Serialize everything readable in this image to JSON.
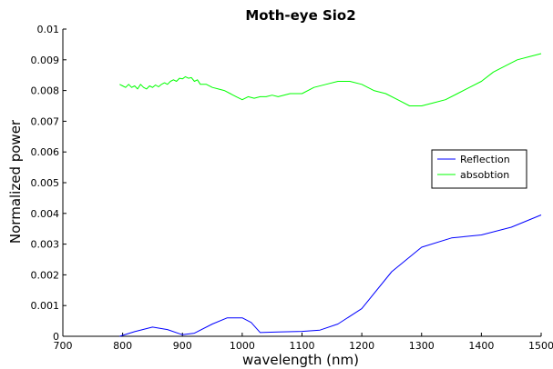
{
  "chart_data": {
    "type": "line",
    "title": "Moth-eye Sio2",
    "xlabel": "wavelength (nm)",
    "ylabel": "Normalized power",
    "xlim": [
      700,
      1500
    ],
    "ylim": [
      0,
      0.01
    ],
    "x_ticks": [
      "700",
      "800",
      "900",
      "1000",
      "1100",
      "1200",
      "1300",
      "1400",
      "1500"
    ],
    "y_ticks": [
      "0",
      "0.001",
      "0.002",
      "0.003",
      "0.004",
      "0.005",
      "0.006",
      "0.007",
      "0.008",
      "0.009",
      "0.01"
    ],
    "grid": false,
    "legend_position": "right",
    "series": [
      {
        "name": "Reflection",
        "color": "#0000ff",
        "x": [
          795,
          820,
          850,
          875,
          900,
          920,
          950,
          975,
          1000,
          1015,
          1030,
          1060,
          1100,
          1130,
          1160,
          1200,
          1250,
          1300,
          1350,
          1400,
          1450,
          1500
        ],
        "y": [
          0.0,
          0.00015,
          0.0003,
          0.00022,
          5e-05,
          0.0001,
          0.0004,
          0.0006,
          0.0006,
          0.00045,
          0.00012,
          0.00014,
          0.00016,
          0.0002,
          0.0004,
          0.0009,
          0.0021,
          0.0029,
          0.0032,
          0.0033,
          0.00355,
          0.00395
        ]
      },
      {
        "name": "absobtion",
        "color": "#00ff00",
        "x": [
          795,
          800,
          805,
          810,
          815,
          820,
          825,
          830,
          835,
          840,
          845,
          850,
          855,
          860,
          865,
          870,
          875,
          880,
          885,
          890,
          895,
          900,
          905,
          910,
          915,
          920,
          925,
          930,
          940,
          950,
          960,
          970,
          980,
          990,
          1000,
          1010,
          1020,
          1030,
          1040,
          1050,
          1060,
          1080,
          1100,
          1120,
          1140,
          1160,
          1180,
          1200,
          1220,
          1240,
          1260,
          1280,
          1300,
          1320,
          1340,
          1360,
          1380,
          1400,
          1420,
          1440,
          1460,
          1480,
          1500
        ],
        "y": [
          0.0082,
          0.00815,
          0.0081,
          0.0082,
          0.0081,
          0.00815,
          0.00805,
          0.0082,
          0.0081,
          0.00805,
          0.00815,
          0.0081,
          0.00818,
          0.00812,
          0.0082,
          0.00825,
          0.0082,
          0.0083,
          0.00835,
          0.0083,
          0.0084,
          0.00838,
          0.00845,
          0.0084,
          0.00842,
          0.0083,
          0.00835,
          0.0082,
          0.0082,
          0.0081,
          0.00805,
          0.008,
          0.0079,
          0.0078,
          0.0077,
          0.0078,
          0.00775,
          0.0078,
          0.0078,
          0.00785,
          0.0078,
          0.0079,
          0.0079,
          0.0081,
          0.0082,
          0.0083,
          0.0083,
          0.0082,
          0.008,
          0.0079,
          0.0077,
          0.0075,
          0.0075,
          0.0076,
          0.0077,
          0.0079,
          0.0081,
          0.0083,
          0.0086,
          0.0088,
          0.009,
          0.0091,
          0.0092
        ]
      }
    ]
  }
}
